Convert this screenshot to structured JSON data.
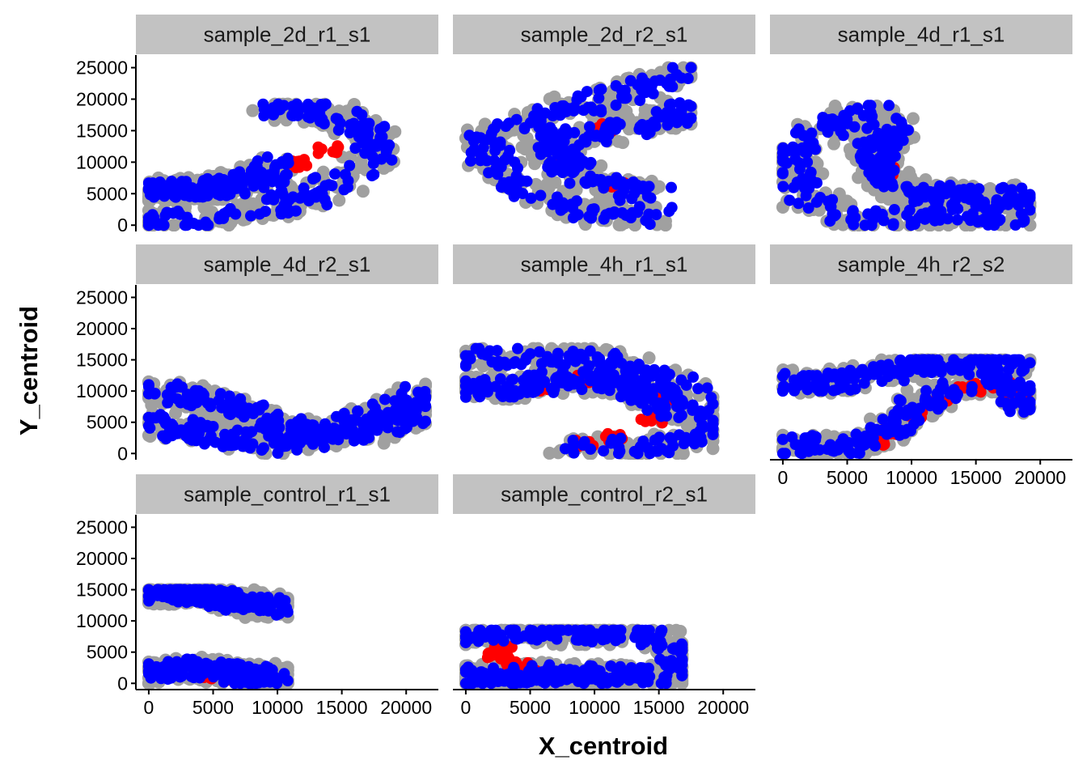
{
  "colors": {
    "strip_bg": "#c2c2c2",
    "background_points": "#a0a0a0",
    "highlight_red": "#ff0000",
    "highlight_blue": "#0000ff",
    "axis": "#000000"
  },
  "chart_data": {
    "type": "scatter",
    "layout": "facet_wrap 3 columns, shared scales",
    "xlabel": "X_centroid",
    "ylabel": "Y_centroid",
    "xlim": [
      -1000,
      22500
    ],
    "ylim": [
      -1000,
      27000
    ],
    "x_ticks": [
      0,
      5000,
      10000,
      15000,
      20000
    ],
    "y_ticks": [
      0,
      5000,
      10000,
      15000,
      20000,
      25000
    ],
    "x_tick_labels": [
      "0",
      "5000",
      "10000",
      "15000",
      "20000"
    ],
    "y_tick_labels": [
      "0",
      "5000",
      "10000",
      "15000",
      "20000",
      "25000"
    ],
    "grid": false,
    "legend": "none",
    "facets": [
      {
        "label": "sample_2d_r1_s1",
        "spine": [
          [
            0,
            500
          ],
          [
            6000,
            1200
          ],
          [
            11000,
            3500
          ],
          [
            15000,
            7000
          ],
          [
            17500,
            10500
          ],
          [
            17500,
            14000
          ],
          [
            15500,
            17000
          ],
          [
            12000,
            18500
          ],
          [
            9000,
            18500
          ]
        ],
        "spine2": [
          [
            0,
            5500
          ],
          [
            6000,
            6000
          ],
          [
            9000,
            8000
          ],
          [
            10000,
            9500
          ]
        ],
        "extent": [
          0,
          21200,
          0,
          19200
        ],
        "red": [
          [
            11500,
            9800
          ],
          [
            14000,
            12000
          ]
        ]
      },
      {
        "label": "sample_2d_r2_s1",
        "spine": [
          [
            17500,
            24500
          ],
          [
            12000,
            21000
          ],
          [
            6000,
            17000
          ],
          [
            1000,
            13000
          ],
          [
            3000,
            8000
          ],
          [
            5000,
            5000
          ],
          [
            8000,
            2500
          ],
          [
            12500,
            1500
          ],
          [
            15000,
            1500
          ]
        ],
        "spine2": [
          [
            17500,
            18000
          ],
          [
            11000,
            15000
          ],
          [
            6000,
            13000
          ],
          [
            8000,
            9000
          ],
          [
            11000,
            6000
          ],
          [
            15000,
            5000
          ]
        ],
        "extent": [
          0,
          17500,
          0,
          25000
        ],
        "red": [
          [
            11000,
            15500
          ],
          [
            8000,
            10000
          ],
          [
            11500,
            6500
          ]
        ]
      },
      {
        "label": "sample_4d_r1_s1",
        "spine": [
          [
            7500,
            18500
          ],
          [
            3000,
            15000
          ],
          [
            500,
            10000
          ],
          [
            2000,
            4000
          ],
          [
            6000,
            1000
          ],
          [
            12000,
            1000
          ],
          [
            19000,
            1500
          ]
        ],
        "spine2": [
          [
            8500,
            16000
          ],
          [
            7000,
            11000
          ],
          [
            8500,
            6000
          ],
          [
            13000,
            4500
          ],
          [
            19000,
            4500
          ]
        ],
        "extent": [
          0,
          19200,
          0,
          19000
        ],
        "red": [
          [
            8500,
            13500
          ],
          [
            8200,
            8500
          ]
        ]
      },
      {
        "label": "sample_4d_r2_s1",
        "spine": [
          [
            0,
            10000
          ],
          [
            5000,
            8500
          ],
          [
            9000,
            5500
          ],
          [
            13000,
            3000
          ],
          [
            17000,
            3500
          ],
          [
            21500,
            6500
          ]
        ],
        "spine2": [
          [
            0,
            5000
          ],
          [
            6000,
            2500
          ],
          [
            11000,
            1500
          ],
          [
            16000,
            4500
          ],
          [
            21500,
            9500
          ]
        ],
        "extent": [
          0,
          21500,
          0,
          11500
        ],
        "red": []
      },
      {
        "label": "sample_4h_r1_s1",
        "spine": [
          [
            0,
            15500
          ],
          [
            5000,
            15500
          ],
          [
            10000,
            15500
          ],
          [
            13500,
            13500
          ],
          [
            16500,
            11000
          ],
          [
            18500,
            8000
          ],
          [
            19000,
            4000
          ],
          [
            17500,
            1500
          ],
          [
            12000,
            1000
          ],
          [
            8000,
            1000
          ]
        ],
        "spine2": [
          [
            0,
            10500
          ],
          [
            4000,
            10500
          ],
          [
            8000,
            12500
          ],
          [
            12000,
            11000
          ],
          [
            14500,
            9000
          ],
          [
            16500,
            6000
          ]
        ],
        "extent": [
          0,
          19200,
          0,
          16800
        ],
        "red": [
          [
            5500,
            10500
          ],
          [
            9500,
            12000
          ],
          [
            14500,
            5500
          ],
          [
            11500,
            2500
          ],
          [
            9000,
            1500
          ],
          [
            15500,
            9000
          ]
        ]
      },
      {
        "label": "sample_4h_r2_s2",
        "spine": [
          [
            0,
            1000
          ],
          [
            3000,
            1500
          ],
          [
            6000,
            1000
          ],
          [
            9000,
            5000
          ],
          [
            12000,
            9500
          ],
          [
            15000,
            11500
          ],
          [
            18000,
            10500
          ],
          [
            19000,
            7500
          ]
        ],
        "spine2": [
          [
            0,
            11500
          ],
          [
            4000,
            11500
          ],
          [
            7500,
            12500
          ],
          [
            10000,
            14000
          ],
          [
            14000,
            14800
          ],
          [
            18500,
            14500
          ]
        ],
        "extent": [
          0,
          19200,
          0,
          15000
        ],
        "red": [
          [
            7000,
            2000
          ],
          [
            8500,
            3500
          ],
          [
            10000,
            6000
          ],
          [
            12000,
            8500
          ],
          [
            14500,
            10500
          ],
          [
            17000,
            10800
          ],
          [
            18200,
            9500
          ]
        ]
      },
      {
        "label": "sample_control_r1_s1",
        "spine": [
          [
            0,
            14500
          ],
          [
            3000,
            14500
          ],
          [
            6000,
            13500
          ],
          [
            10500,
            12000
          ]
        ],
        "spine2": [
          [
            0,
            1500
          ],
          [
            4000,
            2500
          ],
          [
            7000,
            1500
          ],
          [
            10500,
            1000
          ]
        ],
        "extent": [
          0,
          10800,
          0,
          15000
        ],
        "red": [
          [
            5000,
            1200
          ],
          [
            7000,
            1200
          ],
          [
            8500,
            700
          ]
        ]
      },
      {
        "label": "sample_control_r2_s1",
        "spine": [
          [
            0,
            8000
          ],
          [
            5000,
            8000
          ],
          [
            10000,
            8000
          ],
          [
            14000,
            8000
          ],
          [
            16500,
            5000
          ],
          [
            16500,
            1000
          ]
        ],
        "spine2": [
          [
            0,
            1000
          ],
          [
            5000,
            1500
          ],
          [
            10000,
            1500
          ],
          [
            15000,
            1000
          ]
        ],
        "extent": [
          0,
          16800,
          0,
          8500
        ],
        "red": [
          [
            2500,
            4500
          ],
          [
            4000,
            3000
          ],
          [
            5500,
            1500
          ],
          [
            3000,
            5200
          ]
        ]
      }
    ]
  }
}
